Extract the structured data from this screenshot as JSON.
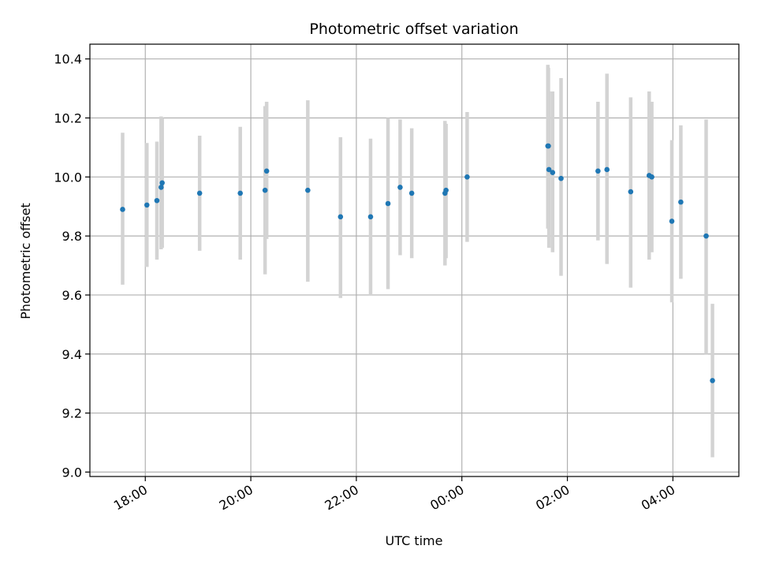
{
  "chart_data": {
    "type": "scatter",
    "title": "Photometric offset variation",
    "xlabel": "UTC time",
    "ylabel": "Photometric offset",
    "x_unit": "hours (UTC, continuing past midnight)",
    "xlim": [
      16.95,
      29.25
    ],
    "ylim": [
      8.985,
      10.45
    ],
    "x_ticks": [
      {
        "value": 18,
        "label": "18:00"
      },
      {
        "value": 20,
        "label": "20:00"
      },
      {
        "value": 22,
        "label": "22:00"
      },
      {
        "value": 24,
        "label": "00:00"
      },
      {
        "value": 26,
        "label": "02:00"
      },
      {
        "value": 28,
        "label": "04:00"
      }
    ],
    "y_ticks": [
      9.0,
      9.2,
      9.4,
      9.6,
      9.8,
      10.0,
      10.2,
      10.4
    ],
    "y_tick_labels": [
      "9.0",
      "9.2",
      "9.4",
      "9.6",
      "9.8",
      "10.0",
      "10.2",
      "10.4"
    ],
    "grid": true,
    "marker_color": "#1f77b4",
    "errorbar_color": "#d3d3d3",
    "points": [
      {
        "x": 17.57,
        "y": 9.89,
        "lo": 9.635,
        "hi": 10.15
      },
      {
        "x": 18.03,
        "y": 9.905,
        "lo": 9.695,
        "hi": 10.115
      },
      {
        "x": 18.22,
        "y": 9.92,
        "lo": 9.72,
        "hi": 10.12
      },
      {
        "x": 18.3,
        "y": 9.965,
        "lo": 9.755,
        "hi": 10.205
      },
      {
        "x": 18.32,
        "y": 9.98,
        "lo": 9.76,
        "hi": 10.2
      },
      {
        "x": 19.03,
        "y": 9.945,
        "lo": 9.75,
        "hi": 10.14
      },
      {
        "x": 19.8,
        "y": 9.945,
        "lo": 9.72,
        "hi": 10.17
      },
      {
        "x": 20.27,
        "y": 9.955,
        "lo": 9.67,
        "hi": 10.24
      },
      {
        "x": 20.3,
        "y": 10.02,
        "lo": 9.79,
        "hi": 10.255
      },
      {
        "x": 21.08,
        "y": 9.955,
        "lo": 9.645,
        "hi": 10.26
      },
      {
        "x": 21.7,
        "y": 9.865,
        "lo": 9.59,
        "hi": 10.135
      },
      {
        "x": 22.27,
        "y": 9.865,
        "lo": 9.6,
        "hi": 10.13
      },
      {
        "x": 22.6,
        "y": 9.91,
        "lo": 9.62,
        "hi": 10.2
      },
      {
        "x": 22.83,
        "y": 9.965,
        "lo": 9.735,
        "hi": 10.195
      },
      {
        "x": 23.05,
        "y": 9.945,
        "lo": 9.725,
        "hi": 10.165
      },
      {
        "x": 23.68,
        "y": 9.945,
        "lo": 9.7,
        "hi": 10.19
      },
      {
        "x": 23.7,
        "y": 9.955,
        "lo": 9.725,
        "hi": 10.18
      },
      {
        "x": 24.1,
        "y": 10.0,
        "lo": 9.78,
        "hi": 10.22
      },
      {
        "x": 25.63,
        "y": 10.105,
        "lo": 9.825,
        "hi": 10.38
      },
      {
        "x": 25.64,
        "y": 10.105,
        "lo": 9.84,
        "hi": 10.37
      },
      {
        "x": 25.65,
        "y": 10.025,
        "lo": 9.76,
        "hi": 10.29
      },
      {
        "x": 25.72,
        "y": 10.015,
        "lo": 9.745,
        "hi": 10.29
      },
      {
        "x": 25.88,
        "y": 9.995,
        "lo": 9.665,
        "hi": 10.335
      },
      {
        "x": 26.58,
        "y": 10.02,
        "lo": 9.785,
        "hi": 10.255
      },
      {
        "x": 26.75,
        "y": 10.025,
        "lo": 9.705,
        "hi": 10.35
      },
      {
        "x": 27.2,
        "y": 9.95,
        "lo": 9.625,
        "hi": 10.27
      },
      {
        "x": 27.55,
        "y": 10.005,
        "lo": 9.72,
        "hi": 10.29
      },
      {
        "x": 27.6,
        "y": 10.0,
        "lo": 9.745,
        "hi": 10.255
      },
      {
        "x": 27.98,
        "y": 9.85,
        "lo": 9.575,
        "hi": 10.125
      },
      {
        "x": 28.15,
        "y": 9.915,
        "lo": 9.655,
        "hi": 10.175
      },
      {
        "x": 28.63,
        "y": 9.8,
        "lo": 9.4,
        "hi": 10.195
      },
      {
        "x": 28.75,
        "y": 9.31,
        "lo": 9.05,
        "hi": 9.57
      }
    ]
  }
}
